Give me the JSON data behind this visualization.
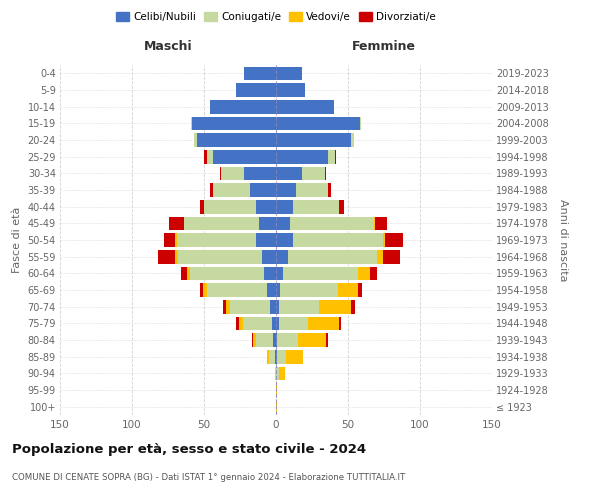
{
  "age_groups": [
    "100+",
    "95-99",
    "90-94",
    "85-89",
    "80-84",
    "75-79",
    "70-74",
    "65-69",
    "60-64",
    "55-59",
    "50-54",
    "45-49",
    "40-44",
    "35-39",
    "30-34",
    "25-29",
    "20-24",
    "15-19",
    "10-14",
    "5-9",
    "0-4"
  ],
  "birth_years": [
    "≤ 1923",
    "1924-1928",
    "1929-1933",
    "1934-1938",
    "1939-1943",
    "1944-1948",
    "1949-1953",
    "1954-1958",
    "1959-1963",
    "1964-1968",
    "1969-1973",
    "1974-1978",
    "1979-1983",
    "1984-1988",
    "1989-1993",
    "1994-1998",
    "1999-2003",
    "2004-2008",
    "2009-2013",
    "2014-2018",
    "2019-2023"
  ],
  "colors": {
    "celibi": "#4472c4",
    "coniugati": "#c5d9a0",
    "vedovi": "#ffc000",
    "divorziati": "#cc0000"
  },
  "maschi": {
    "celibi": [
      0,
      0,
      0,
      1,
      2,
      3,
      4,
      6,
      8,
      10,
      14,
      12,
      14,
      18,
      22,
      44,
      55,
      58,
      46,
      28,
      22
    ],
    "coniugati": [
      0,
      0,
      1,
      4,
      12,
      20,
      28,
      42,
      52,
      58,
      55,
      52,
      36,
      26,
      16,
      4,
      2,
      1,
      0,
      0,
      0
    ],
    "vedovi": [
      0,
      0,
      0,
      1,
      2,
      3,
      3,
      3,
      2,
      2,
      1,
      0,
      0,
      0,
      0,
      0,
      0,
      0,
      0,
      0,
      0
    ],
    "divorziati": [
      0,
      0,
      0,
      0,
      1,
      2,
      2,
      2,
      4,
      12,
      8,
      10,
      3,
      2,
      1,
      2,
      0,
      0,
      0,
      0,
      0
    ]
  },
  "femmine": {
    "celibi": [
      0,
      0,
      0,
      1,
      1,
      2,
      2,
      3,
      5,
      8,
      12,
      10,
      12,
      14,
      18,
      36,
      52,
      58,
      40,
      20,
      18
    ],
    "coniugati": [
      0,
      0,
      2,
      6,
      14,
      20,
      28,
      40,
      52,
      62,
      62,
      58,
      32,
      22,
      16,
      5,
      2,
      1,
      0,
      0,
      0
    ],
    "vedovi": [
      1,
      1,
      4,
      12,
      20,
      22,
      22,
      14,
      8,
      4,
      2,
      1,
      0,
      0,
      0,
      0,
      0,
      0,
      0,
      0,
      0
    ],
    "divorziati": [
      0,
      0,
      0,
      0,
      1,
      1,
      3,
      3,
      5,
      12,
      12,
      8,
      3,
      2,
      1,
      1,
      0,
      0,
      0,
      0,
      0
    ]
  },
  "xlim": 150,
  "title": "Popolazione per età, sesso e stato civile - 2024",
  "subtitle": "COMUNE DI CENATE SOPRA (BG) - Dati ISTAT 1° gennaio 2024 - Elaborazione TUTTITALIA.IT",
  "ylabel_left": "Fasce di età",
  "ylabel_right": "Anni di nascita",
  "xlabel_left": "Maschi",
  "xlabel_right": "Femmine",
  "legend_labels": [
    "Celibi/Nubili",
    "Coniugati/e",
    "Vedovi/e",
    "Divorziati/e"
  ],
  "bg_color": "#ffffff",
  "grid_color": "#cccccc"
}
